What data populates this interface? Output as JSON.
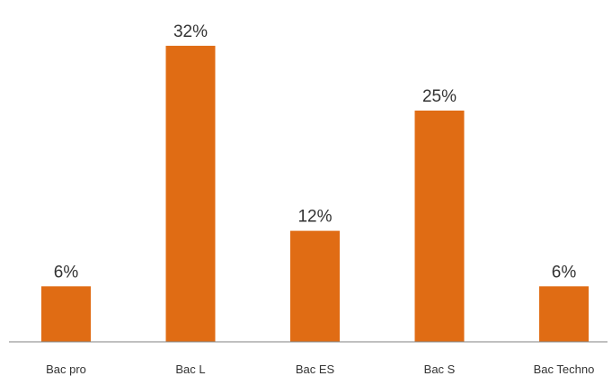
{
  "chart_data": {
    "type": "bar",
    "title": "",
    "xlabel": "",
    "ylabel": "",
    "categories": [
      "Bac pro",
      "Bac L",
      "Bac ES",
      "Bac S",
      "Bac Techno"
    ],
    "values": [
      6,
      32,
      12,
      25,
      6
    ],
    "data_labels": [
      "6%",
      "32%",
      "12%",
      "25%",
      "6%"
    ],
    "unit": "%",
    "ylim": [
      0,
      35
    ],
    "grid": false,
    "legend": "none",
    "bar_color": "#E06C14",
    "axis_color": "#808080"
  }
}
